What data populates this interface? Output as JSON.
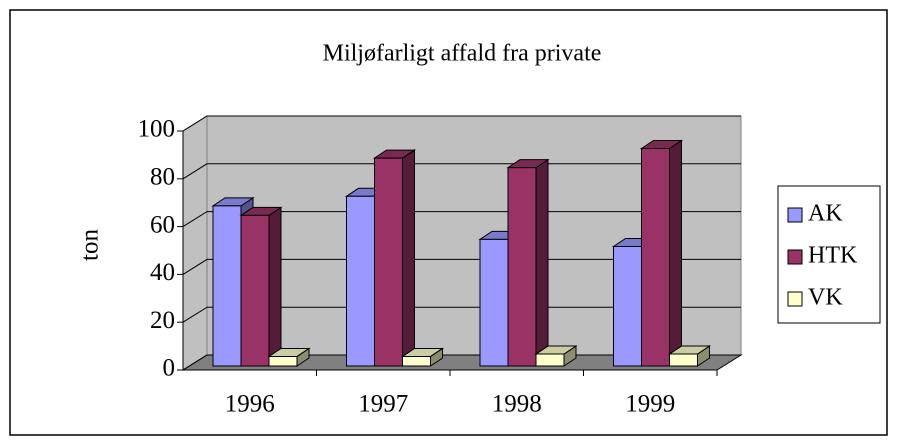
{
  "chart_data": {
    "type": "bar3d",
    "title": "Miljøfarligt affald fra private",
    "y_label": "ton",
    "categories": [
      "1996",
      "1997",
      "1998",
      "1999"
    ],
    "series": [
      {
        "name": "AK",
        "color": "#9999ff",
        "values": [
          67,
          71,
          53,
          50
        ]
      },
      {
        "name": "HTK",
        "color": "#993366",
        "values": [
          63,
          87,
          83,
          91
        ]
      },
      {
        "name": "VK",
        "color": "#ffffcc",
        "values": [
          4,
          4,
          5,
          5
        ]
      }
    ],
    "ylim": [
      0,
      100
    ],
    "yticks": [
      0,
      20,
      40,
      60,
      80,
      100
    ],
    "grid": true,
    "legend": "right"
  }
}
